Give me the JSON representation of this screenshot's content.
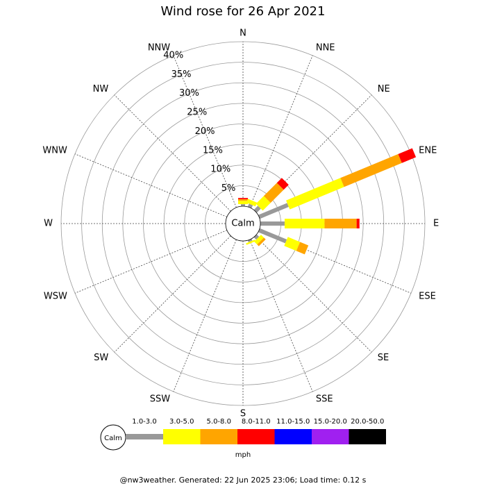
{
  "chart_data": {
    "type": "windrose",
    "title": "Wind rose for 26 Apr 2021",
    "categories": [
      "N",
      "NNE",
      "NE",
      "ENE",
      "E",
      "ESE",
      "SE",
      "SSE",
      "S",
      "SSW",
      "SW",
      "WSW",
      "W",
      "WNW",
      "NW",
      "NNW"
    ],
    "center_label": "Calm",
    "legend_unit": "mph",
    "footer": "@nw3weather. Generated: 22 Jun 2025 23:06; Load time: 0.12 s",
    "ylim": [
      0,
      40
    ],
    "yticks": [
      {
        "value": 5,
        "label": "5%"
      },
      {
        "value": 10,
        "label": "10%"
      },
      {
        "value": 15,
        "label": "15%"
      },
      {
        "value": 20,
        "label": "20%"
      },
      {
        "value": 25,
        "label": "25%"
      },
      {
        "value": 30,
        "label": "30%"
      },
      {
        "value": 35,
        "label": "35%"
      },
      {
        "value": 40,
        "label": "40%"
      }
    ],
    "series": [
      {
        "name": "1.0-3.0",
        "color": "#999999",
        "values": [
          0.5,
          0.8,
          1.4,
          7.6,
          5.9,
          7.1,
          0.8,
          0.5,
          0,
          0,
          0,
          0,
          0,
          0,
          0,
          0
        ]
      },
      {
        "name": "3.0-5.0",
        "color": "#ffff00",
        "values": [
          0.8,
          1.0,
          2.7,
          14.3,
          9.7,
          3.2,
          1.0,
          0.4,
          0,
          0,
          0,
          0,
          0,
          0,
          0,
          0
        ]
      },
      {
        "name": "5.0-8.0",
        "color": "#ffa500",
        "values": [
          0.4,
          0,
          4.5,
          15.2,
          7.8,
          2.2,
          0.6,
          0,
          0,
          0,
          0,
          0,
          0,
          0,
          0,
          0
        ]
      },
      {
        "name": "8.0-11.0",
        "color": "#ff0000",
        "values": [
          0.3,
          0,
          1.7,
          3.7,
          0.7,
          0,
          0,
          0,
          0,
          0,
          0,
          0,
          0,
          0,
          0,
          0
        ]
      },
      {
        "name": "11.0-15.0",
        "color": "#0000ff",
        "values": [
          0,
          0,
          0,
          0,
          0,
          0,
          0,
          0,
          0,
          0,
          0,
          0,
          0,
          0,
          0,
          0
        ]
      },
      {
        "name": "15.0-20.0",
        "color": "#a020f0",
        "values": [
          0,
          0,
          0,
          0,
          0,
          0,
          0,
          0,
          0,
          0,
          0,
          0,
          0,
          0,
          0,
          0
        ]
      },
      {
        "name": "20.0-50.0",
        "color": "#000000",
        "values": [
          0,
          0,
          0,
          0,
          0,
          0,
          0,
          0,
          0,
          0,
          0,
          0,
          0,
          0,
          0,
          0
        ]
      }
    ]
  }
}
